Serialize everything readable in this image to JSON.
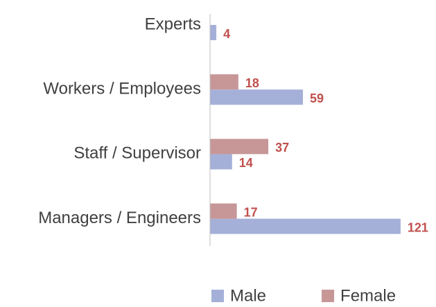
{
  "chart_data": {
    "type": "barh",
    "categories": [
      "Experts",
      "Workers / Employees",
      "Staff / Supervisor",
      "Managers / Engineers"
    ],
    "series": [
      {
        "name": "Male",
        "color": "#a5b0d9",
        "values": [
          4,
          59,
          14,
          121
        ]
      },
      {
        "name": "Female",
        "color": "#c79797",
        "values": [
          null,
          18,
          37,
          17
        ]
      }
    ],
    "xlim": [
      0,
      125
    ],
    "legend": "bottom",
    "label_color": "#c0504d"
  }
}
